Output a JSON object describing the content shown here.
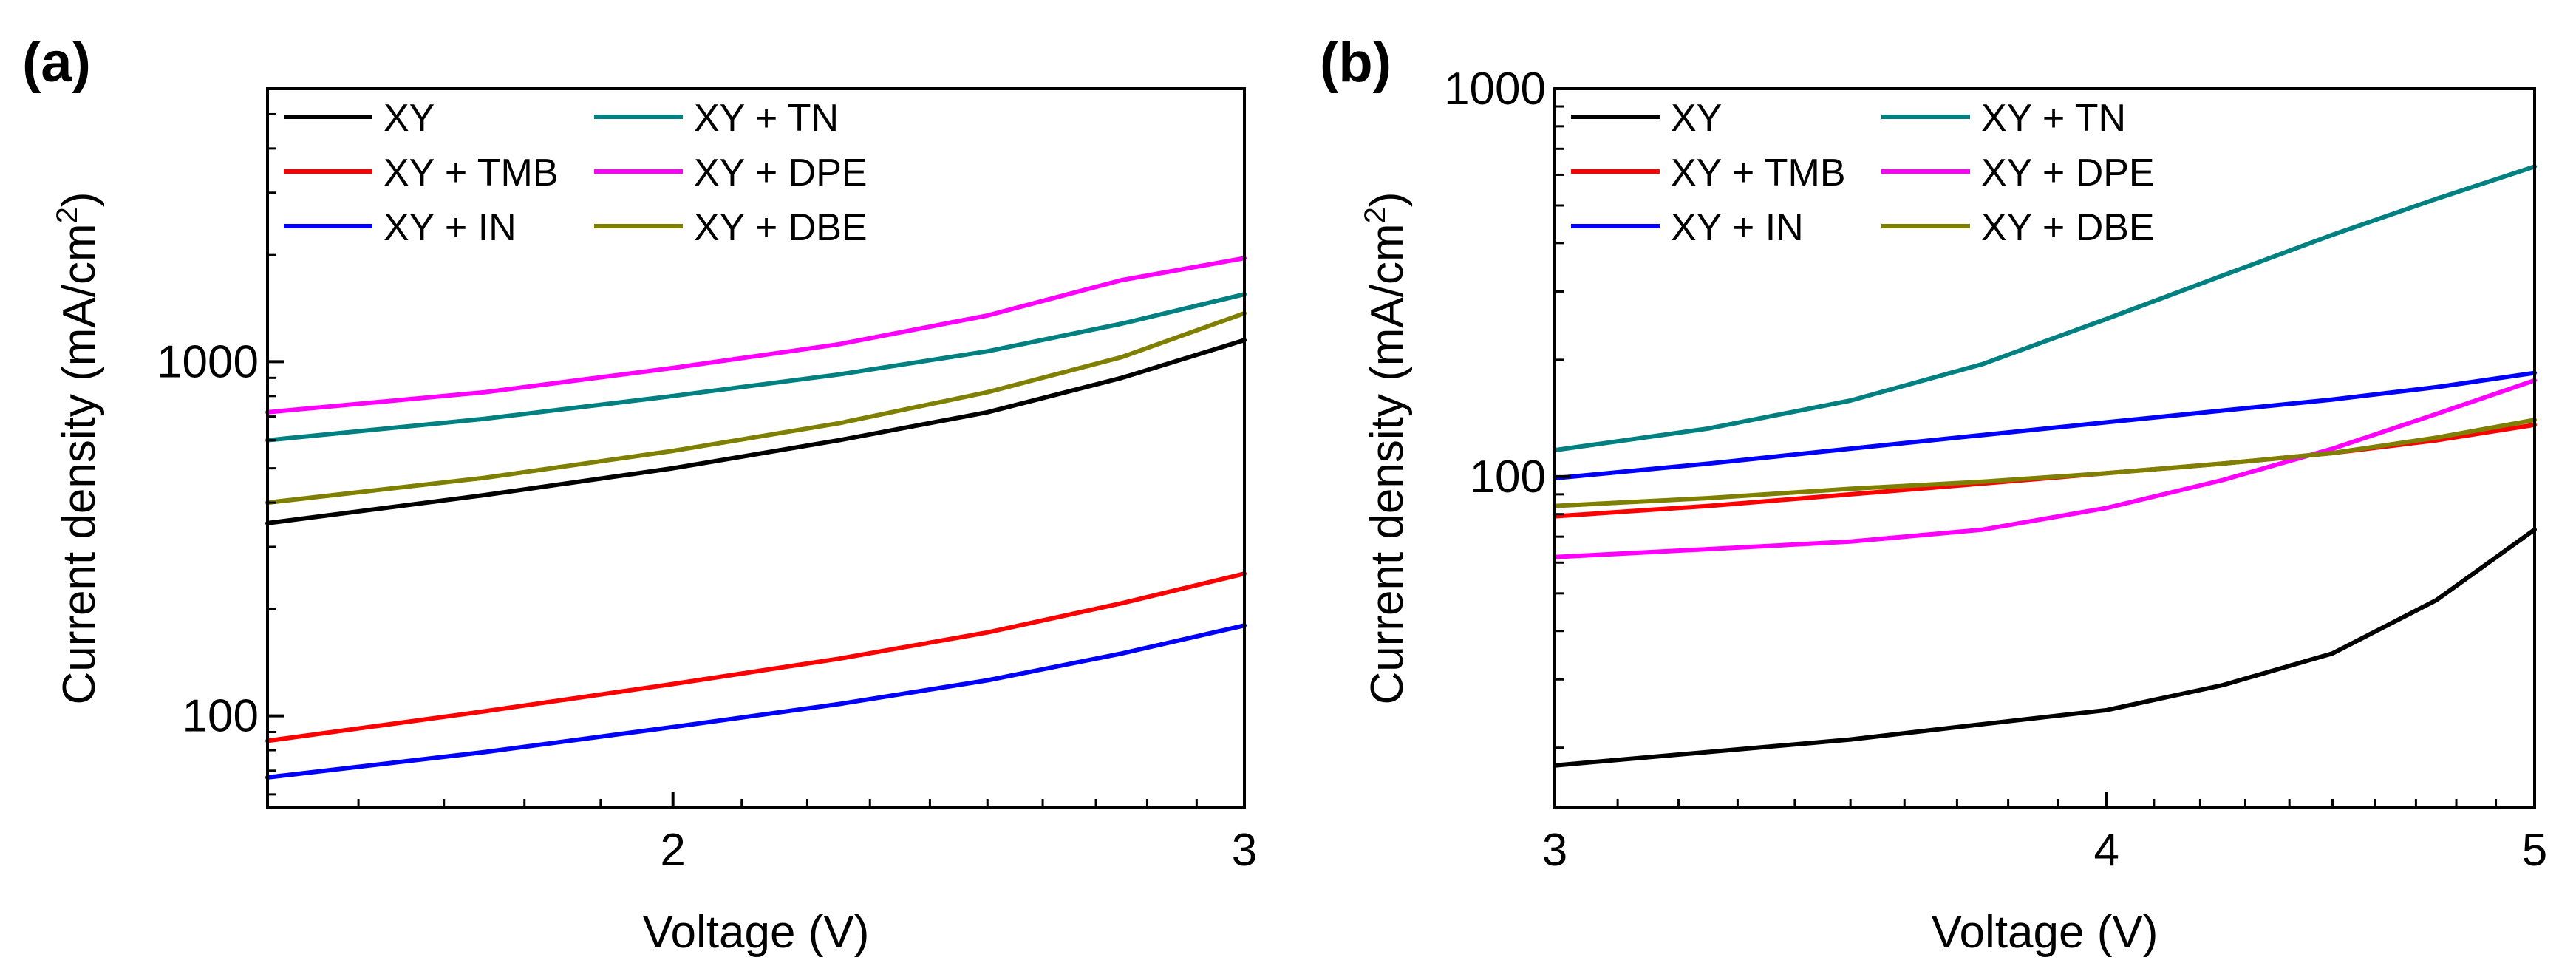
{
  "chart_data": [
    {
      "type": "line",
      "panel_label": "(a)",
      "xlabel": "Voltage (V)",
      "ylabel_main": "Current density (mA/cm",
      "ylabel_sup": "2",
      "ylabel_end": ")",
      "xscale": "log",
      "yscale": "log",
      "xlim": [
        1.5,
        3
      ],
      "ylim": [
        55,
        5900
      ],
      "xticks": [
        {
          "value": 2,
          "label": "2"
        },
        {
          "value": 3,
          "label": "3"
        }
      ],
      "yticks": [
        {
          "value": 100,
          "label": "100"
        },
        {
          "value": 1000,
          "label": "1000"
        }
      ],
      "legend": "top-left, two columns",
      "series": [
        {
          "name": "XY",
          "color": "#000000",
          "x": [
            1.5,
            1.75,
            2.0,
            2.25,
            2.5,
            2.75,
            3.0
          ],
          "y": [
            350,
            420,
            500,
            600,
            720,
            900,
            1150
          ]
        },
        {
          "name": "XY + TMB",
          "color": "#ff0000",
          "x": [
            1.5,
            1.75,
            2.0,
            2.25,
            2.5,
            2.75,
            3.0
          ],
          "y": [
            85,
            103,
            123,
            145,
            172,
            208,
            252
          ]
        },
        {
          "name": "XY + IN",
          "color": "#0000ff",
          "x": [
            1.5,
            1.75,
            2.0,
            2.25,
            2.5,
            2.75,
            3.0
          ],
          "y": [
            67,
            79,
            93,
            108,
            126,
            150,
            180
          ]
        },
        {
          "name": "XY + TN",
          "color": "#008080",
          "x": [
            1.5,
            1.75,
            2.0,
            2.25,
            2.5,
            2.75,
            3.0
          ],
          "y": [
            600,
            690,
            800,
            920,
            1070,
            1280,
            1550
          ]
        },
        {
          "name": "XY + DPE",
          "color": "#ff00ff",
          "x": [
            1.5,
            1.75,
            2.0,
            2.25,
            2.5,
            2.75,
            3.0
          ],
          "y": [
            720,
            820,
            960,
            1120,
            1350,
            1700,
            1960
          ]
        },
        {
          "name": "XY + DBE",
          "color": "#808000",
          "x": [
            1.5,
            1.75,
            2.0,
            2.25,
            2.5,
            2.75,
            3.0
          ],
          "y": [
            400,
            470,
            560,
            670,
            820,
            1030,
            1370
          ]
        }
      ]
    },
    {
      "type": "line",
      "panel_label": "(b)",
      "xlabel": "Voltage (V)",
      "ylabel_main": "Current density (mA/cm",
      "ylabel_sup": "2",
      "ylabel_end": ")",
      "xscale": "log",
      "yscale": "log",
      "xlim": [
        3,
        5
      ],
      "ylim": [
        14,
        1000
      ],
      "xticks": [
        {
          "value": 3,
          "label": "3"
        },
        {
          "value": 4,
          "label": "4"
        },
        {
          "value": 5,
          "label": "5"
        }
      ],
      "yticks": [
        {
          "value": 100,
          "label": "100"
        },
        {
          "value": 1000,
          "label": "1000"
        }
      ],
      "legend": "top-left, two columns",
      "series": [
        {
          "name": "XY",
          "color": "#000000",
          "x": [
            3.0,
            3.25,
            3.5,
            3.75,
            4.0,
            4.25,
            4.5,
            4.75,
            5.0
          ],
          "y": [
            18,
            19.5,
            21,
            23,
            25,
            29,
            35,
            48,
            73
          ]
        },
        {
          "name": "XY + TMB",
          "color": "#ff0000",
          "x": [
            3.0,
            3.25,
            3.5,
            3.75,
            4.0,
            4.25,
            4.5,
            4.75,
            5.0
          ],
          "y": [
            79,
            84,
            90,
            96,
            102,
            108,
            115,
            124,
            136
          ]
        },
        {
          "name": "XY + IN",
          "color": "#0000ff",
          "x": [
            3.0,
            3.25,
            3.5,
            3.75,
            4.0,
            4.25,
            4.5,
            4.75,
            5.0
          ],
          "y": [
            99,
            108,
            118,
            128,
            138,
            148,
            158,
            170,
            185
          ]
        },
        {
          "name": "XY + TN",
          "color": "#008080",
          "x": [
            3.0,
            3.25,
            3.5,
            3.75,
            4.0,
            4.25,
            4.5,
            4.75,
            5.0
          ],
          "y": [
            117,
            133,
            157,
            195,
            255,
            330,
            420,
            520,
            630
          ]
        },
        {
          "name": "XY + DPE",
          "color": "#ff00ff",
          "x": [
            3.0,
            3.25,
            3.5,
            3.75,
            4.0,
            4.25,
            4.5,
            4.75,
            5.0
          ],
          "y": [
            62,
            65,
            68,
            73,
            83,
            98,
            118,
            145,
            177
          ]
        },
        {
          "name": "XY + DBE",
          "color": "#808000",
          "x": [
            3.0,
            3.25,
            3.5,
            3.75,
            4.0,
            4.25,
            4.5,
            4.75,
            5.0
          ],
          "y": [
            84,
            88,
            93,
            97,
            102,
            108,
            115,
            126,
            140
          ]
        }
      ]
    }
  ]
}
